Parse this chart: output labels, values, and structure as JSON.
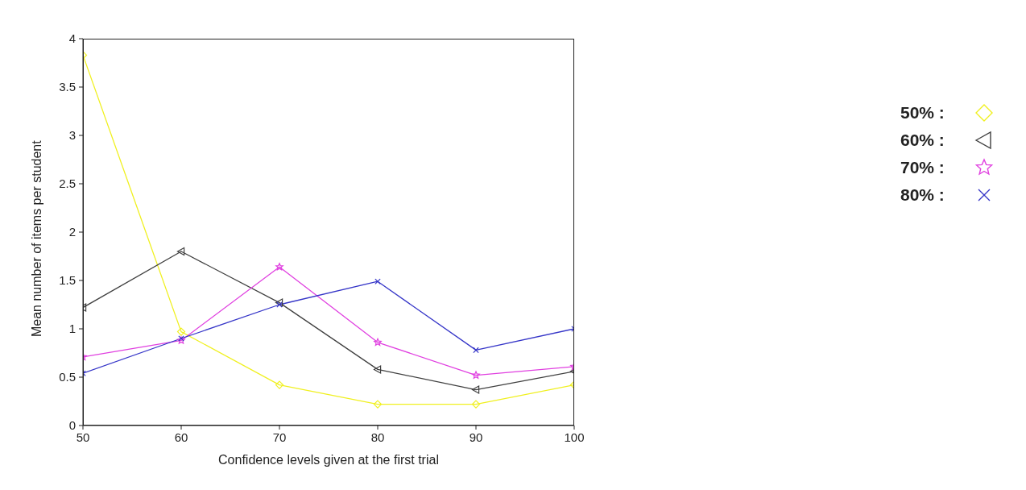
{
  "chart_data": {
    "type": "line",
    "xlabel": "Confidence levels given at the first trial",
    "ylabel": "Mean number of items per student",
    "x": [
      50,
      60,
      70,
      80,
      90,
      100
    ],
    "series": [
      {
        "name": "50% :",
        "color": "#f0f020",
        "marker": "diamond",
        "values": [
          3.83,
          0.97,
          0.42,
          0.22,
          0.22,
          0.42
        ]
      },
      {
        "name": "60% :",
        "color": "#404040",
        "marker": "triangle",
        "values": [
          1.22,
          1.8,
          1.27,
          0.58,
          0.37,
          0.56
        ]
      },
      {
        "name": "70% :",
        "color": "#e040e0",
        "marker": "star",
        "values": [
          0.71,
          0.88,
          1.64,
          0.86,
          0.52,
          0.61
        ]
      },
      {
        "name": "80% :",
        "color": "#3636c8",
        "marker": "cross",
        "values": [
          0.54,
          0.9,
          1.25,
          1.49,
          0.78,
          1.0
        ]
      }
    ],
    "xlim": [
      50,
      100
    ],
    "xticks": [
      50,
      60,
      70,
      80,
      90,
      100
    ],
    "ylim": [
      0,
      4
    ],
    "yticks": [
      0,
      0.5,
      1,
      1.5,
      2,
      2.5,
      3,
      3.5,
      4
    ],
    "grid": false,
    "legend": "right",
    "line_style": "solid"
  }
}
